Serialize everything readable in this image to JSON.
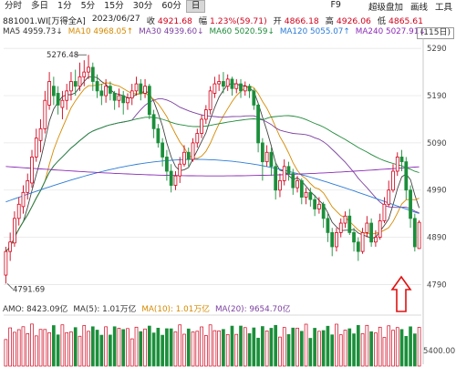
{
  "toolbar": {
    "tabs": [
      "分时",
      "多日",
      "1分",
      "5分",
      "15分",
      "30分",
      "60分",
      "日"
    ],
    "active": "日",
    "f9": "F9",
    "right_items": [
      "超级盘加",
      "画线",
      "工具"
    ]
  },
  "info": {
    "code": "881001.WI[万得全A]",
    "date": "2023/06/27",
    "close_label": "收",
    "close": "4921.68",
    "chg_label": "幅",
    "chg": "1.23%(59.71)",
    "open_label": "开",
    "open": "4866.18",
    "high_label": "高",
    "high": "4926.06",
    "low_label": "低",
    "low": "4865.61"
  },
  "ma": {
    "ma5": "MA5 4959.73↓",
    "ma10": "MA10 4968.05↑",
    "ma30": "MA30 4939.60↓",
    "ma60": "MA60 5020.59↓",
    "ma120": "MA120 5055.07↑",
    "ma240": "MA240 5027.91↓",
    "page": "(115日)"
  },
  "amo": {
    "amo": "AMO: 8423.09亿",
    "ma5": "MA(5): 1.01万亿",
    "ma10": "MA(10): 1.01万亿",
    "ma20": "MA(20): 9654.70亿"
  },
  "chart_data": {
    "type": "candlestick",
    "title": "881001.WI[万得全A]",
    "y_ticks": [
      5290,
      5190,
      5090,
      4990,
      4890,
      4790
    ],
    "ylim": [
      4760,
      5300
    ],
    "high_label": "5276.48",
    "low_label": "4791.69",
    "volume_tick": "5400.00",
    "candles": [
      [
        4810,
        4860,
        4792,
        4870
      ],
      [
        4860,
        4880,
        4840,
        4900
      ],
      [
        4878,
        4930,
        4870,
        4945
      ],
      [
        4930,
        4960,
        4915,
        4975
      ],
      [
        4955,
        4985,
        4940,
        5000
      ],
      [
        4985,
        5010,
        4970,
        5025
      ],
      [
        5005,
        5060,
        4995,
        5075
      ],
      [
        5060,
        5100,
        5050,
        5120
      ],
      [
        5095,
        5120,
        5070,
        5140
      ],
      [
        5120,
        5180,
        5110,
        5200
      ],
      [
        5170,
        5220,
        5160,
        5240
      ],
      [
        5210,
        5190,
        5170,
        5230
      ],
      [
        5195,
        5170,
        5150,
        5210
      ],
      [
        5165,
        5180,
        5140,
        5200
      ],
      [
        5180,
        5200,
        5160,
        5215
      ],
      [
        5200,
        5220,
        5180,
        5240
      ],
      [
        5220,
        5210,
        5190,
        5245
      ],
      [
        5210,
        5230,
        5200,
        5260
      ],
      [
        5230,
        5240,
        5210,
        5265
      ],
      [
        5240,
        5250,
        5225,
        5276.48
      ],
      [
        5250,
        5220,
        5200,
        5260
      ],
      [
        5220,
        5200,
        5185,
        5235
      ],
      [
        5200,
        5190,
        5170,
        5215
      ],
      [
        5190,
        5210,
        5175,
        5225
      ],
      [
        5210,
        5195,
        5180,
        5220
      ],
      [
        5195,
        5180,
        5160,
        5200
      ],
      [
        5180,
        5190,
        5165,
        5205
      ],
      [
        5190,
        5175,
        5150,
        5200
      ],
      [
        5175,
        5185,
        5160,
        5195
      ],
      [
        5185,
        5200,
        5170,
        5215
      ],
      [
        5200,
        5215,
        5190,
        5230
      ],
      [
        5215,
        5195,
        5180,
        5225
      ],
      [
        5195,
        5210,
        5185,
        5225
      ],
      [
        5210,
        5150,
        5140,
        5215
      ],
      [
        5150,
        5120,
        5100,
        5160
      ],
      [
        5120,
        5090,
        5080,
        5130
      ],
      [
        5090,
        5060,
        5040,
        5100
      ],
      [
        5060,
        5030,
        5010,
        5075
      ],
      [
        5030,
        5000,
        4985,
        5045
      ],
      [
        5000,
        5020,
        4990,
        5030
      ],
      [
        5020,
        5045,
        5005,
        5060
      ],
      [
        5045,
        5070,
        5040,
        5085
      ],
      [
        5070,
        5055,
        5040,
        5080
      ],
      [
        5055,
        5090,
        5050,
        5100
      ],
      [
        5090,
        5110,
        5080,
        5120
      ],
      [
        5110,
        5140,
        5100,
        5150
      ],
      [
        5140,
        5160,
        5130,
        5170
      ],
      [
        5160,
        5200,
        5150,
        5210
      ],
      [
        5195,
        5215,
        5185,
        5230
      ],
      [
        5215,
        5220,
        5200,
        5235
      ],
      [
        5220,
        5210,
        5195,
        5240
      ],
      [
        5210,
        5225,
        5200,
        5235
      ],
      [
        5225,
        5205,
        5190,
        5230
      ],
      [
        5205,
        5215,
        5195,
        5225
      ],
      [
        5215,
        5200,
        5185,
        5225
      ],
      [
        5200,
        5210,
        5190,
        5220
      ],
      [
        5210,
        5200,
        5185,
        5215
      ],
      [
        5200,
        5170,
        5160,
        5205
      ],
      [
        5170,
        5090,
        5070,
        5175
      ],
      [
        5090,
        5050,
        5010,
        5100
      ],
      [
        5050,
        5070,
        5040,
        5085
      ],
      [
        5070,
        5040,
        5020,
        5080
      ],
      [
        5040,
        4990,
        4970,
        5050
      ],
      [
        4990,
        5010,
        4975,
        5025
      ],
      [
        5010,
        5040,
        5000,
        5055
      ],
      [
        5040,
        5025,
        5010,
        5050
      ],
      [
        5025,
        4995,
        4980,
        5035
      ],
      [
        4995,
        5010,
        4985,
        5020
      ],
      [
        5010,
        4975,
        4960,
        5015
      ],
      [
        4975,
        4985,
        4960,
        4995
      ],
      [
        4985,
        4970,
        4955,
        4995
      ],
      [
        4970,
        4950,
        4935,
        4980
      ],
      [
        4950,
        4960,
        4940,
        4975
      ],
      [
        4960,
        4930,
        4910,
        4965
      ],
      [
        4930,
        4900,
        4880,
        4940
      ],
      [
        4900,
        4870,
        4850,
        4910
      ],
      [
        4870,
        4900,
        4860,
        4910
      ],
      [
        4900,
        4920,
        4890,
        4930
      ],
      [
        4920,
        4935,
        4910,
        4945
      ],
      [
        4935,
        4900,
        4895,
        4950
      ],
      [
        4900,
        4880,
        4860,
        4910
      ],
      [
        4880,
        4860,
        4840,
        4890
      ],
      [
        4860,
        4900,
        4855,
        4910
      ],
      [
        4900,
        4920,
        4890,
        4935
      ],
      [
        4920,
        4880,
        4870,
        4930
      ],
      [
        4880,
        4890,
        4870,
        4905
      ],
      [
        4890,
        4925,
        4885,
        4940
      ],
      [
        4925,
        4960,
        4920,
        4975
      ],
      [
        4960,
        4990,
        4955,
        5010
      ],
      [
        4990,
        5030,
        4985,
        5045
      ],
      [
        5030,
        5060,
        5020,
        5070
      ],
      [
        5060,
        5050,
        5030,
        5075
      ],
      [
        5050,
        4990,
        4970,
        5060
      ],
      [
        4990,
        4930,
        4910,
        5000
      ],
      [
        4930,
        4870,
        4860,
        4940
      ],
      [
        4866.18,
        4921.68,
        4865.61,
        4926.06
      ]
    ],
    "volume_max": 12000,
    "volume_tick_value": 5400
  }
}
